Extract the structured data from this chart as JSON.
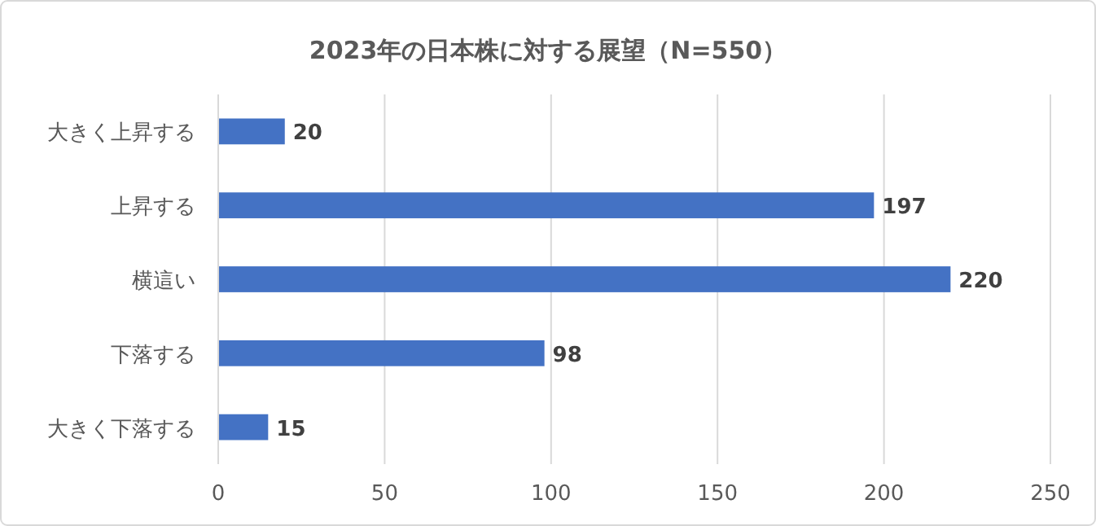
{
  "chart_data": {
    "type": "bar",
    "orientation": "horizontal",
    "title": "2023年の日本株に対する展望（N=550）",
    "categories": [
      "大きく上昇する",
      "上昇する",
      "横這い",
      "下落する",
      "大きく下落する"
    ],
    "values": [
      20,
      197,
      220,
      98,
      15
    ],
    "color": "#4472c4",
    "xlim": [
      0,
      250
    ],
    "xticks": [
      0,
      50,
      100,
      150,
      200,
      250
    ],
    "grid": "x",
    "data_labels": true
  }
}
